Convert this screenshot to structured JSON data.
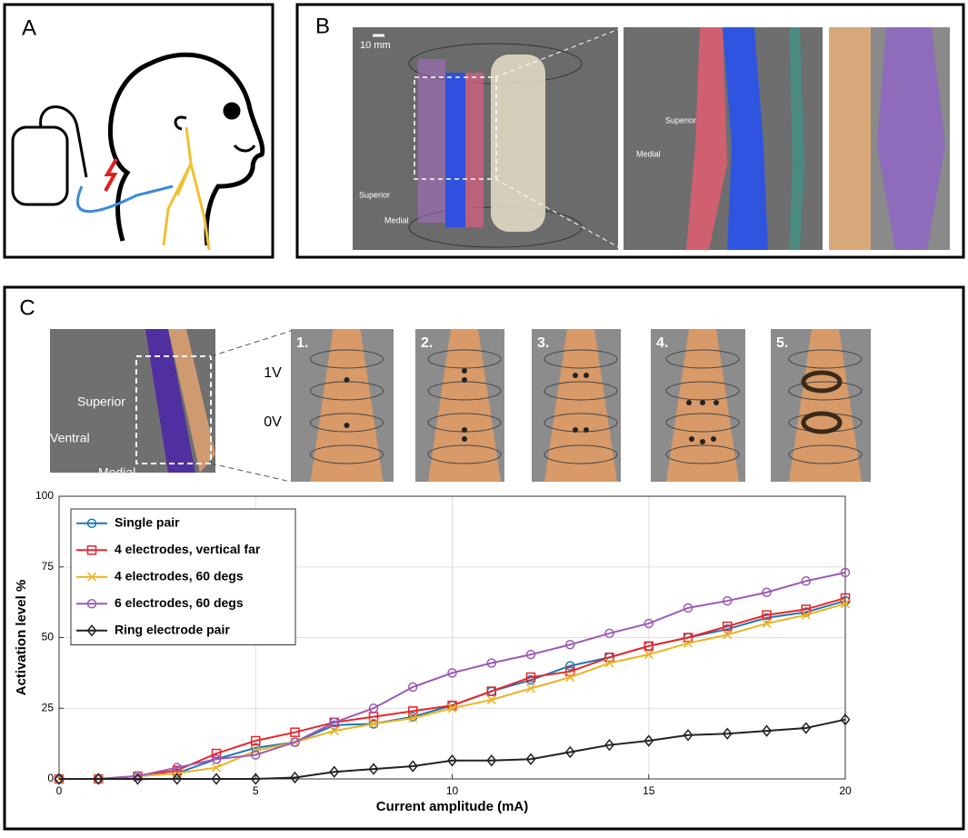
{
  "panel_a": {
    "label": "A"
  },
  "panel_b": {
    "label": "B",
    "scale_bar": "10 mm",
    "axis_up_1": "Superior",
    "axis_side_1": "Medial",
    "axis_up_2": "Superior",
    "axis_side_2": "Medial"
  },
  "panel_c": {
    "label": "C",
    "axis_up": "Superior",
    "axis_side": "Ventral",
    "axis_down": "Medial",
    "voltage_high": "1V",
    "voltage_low": "0V",
    "configs": [
      "1.",
      "2.",
      "3.",
      "4.",
      "5."
    ]
  },
  "chart_data": {
    "type": "line",
    "xlabel": "Current amplitude (mA)",
    "ylabel": "Activation level %",
    "x": [
      0,
      1,
      2,
      3,
      4,
      5,
      6,
      7,
      8,
      9,
      10,
      11,
      12,
      13,
      14,
      15,
      16,
      17,
      18,
      19,
      20
    ],
    "xlim": [
      0,
      20
    ],
    "xticks": [
      0,
      5,
      10,
      15,
      20
    ],
    "ylim": [
      0,
      100
    ],
    "yticks": [
      0,
      25,
      50,
      75,
      100
    ],
    "grid": true,
    "legend": "upper left",
    "series": [
      {
        "name": "Single pair",
        "color": "#1f77b4",
        "marker": "circle",
        "values": [
          0,
          0,
          1,
          2,
          7,
          11,
          13,
          19,
          19.5,
          22,
          26,
          31,
          35,
          40,
          43,
          47,
          50,
          53,
          57,
          59,
          63
        ]
      },
      {
        "name": "4 electrodes, vertical far",
        "color": "#e8262b",
        "marker": "square",
        "values": [
          0,
          0,
          1,
          3,
          9,
          13.5,
          16.5,
          20,
          22,
          24,
          26,
          31,
          36,
          38,
          43,
          47,
          50,
          54,
          58,
          60,
          64
        ]
      },
      {
        "name": "4 electrodes, 60 degs",
        "color": "#edb120",
        "marker": "x",
        "values": [
          0,
          0,
          1,
          2,
          4,
          10,
          13,
          17,
          19.5,
          21.5,
          25,
          28,
          32,
          36,
          41,
          44,
          48,
          51,
          55,
          58,
          62
        ]
      },
      {
        "name": "6 electrodes, 60 degs",
        "color": "#9b59b6",
        "marker": "circle",
        "values": [
          0,
          0,
          1,
          4,
          7,
          8.5,
          13,
          20,
          25,
          32.5,
          37.5,
          41,
          44,
          47.5,
          51.5,
          55,
          60.5,
          63,
          66,
          70,
          73
        ]
      },
      {
        "name": "Ring electrode pair",
        "color": "#222222",
        "marker": "diamond",
        "values": [
          0,
          0,
          0,
          0,
          0,
          0,
          0.5,
          2.5,
          3.5,
          4.5,
          6.5,
          6.5,
          7,
          9.5,
          12,
          13.5,
          15.5,
          16,
          17,
          18,
          21
        ]
      }
    ]
  }
}
